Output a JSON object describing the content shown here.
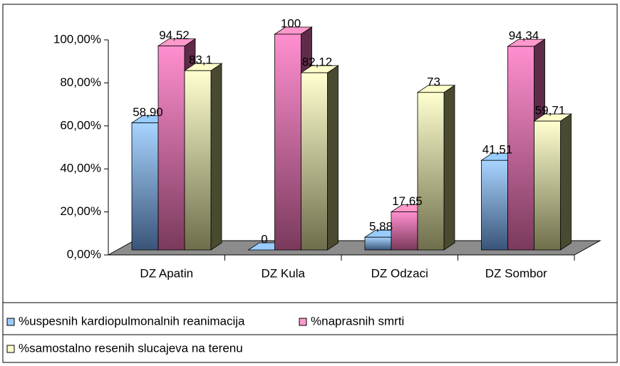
{
  "chart_data": {
    "type": "bar3d",
    "categories": [
      "DZ Apatin",
      "DZ Kula",
      "DZ Odzaci",
      "DZ Sombor"
    ],
    "series": [
      {
        "name": "%uspesnih kardiopulmonalnih reanimacija",
        "color": "#99ccff",
        "values": [
          58.9,
          0,
          5.88,
          41.51
        ],
        "value_labels": [
          "58,90",
          "0",
          "5,88",
          "41,51"
        ]
      },
      {
        "name": "%naprasnih smrti",
        "color": "#ff99cc",
        "values": [
          94.52,
          100,
          17.65,
          94.34
        ],
        "value_labels": [
          "94,52",
          "100",
          "17,65",
          "94,34"
        ]
      },
      {
        "name": "%samostalno resenih slucajeva na terenu",
        "color": "#ffffcc",
        "values": [
          83.1,
          82.12,
          73,
          59.71
        ],
        "value_labels": [
          "83,1",
          "82,12",
          "73",
          "59,71"
        ]
      }
    ],
    "ylim": [
      0,
      100
    ],
    "yticks": [
      {
        "value": 0,
        "label": "0,00%"
      },
      {
        "value": 20,
        "label": "20,00%"
      },
      {
        "value": 40,
        "label": "40,00%"
      },
      {
        "value": 60,
        "label": "60,00%"
      },
      {
        "value": 80,
        "label": "80,00%"
      },
      {
        "value": 100,
        "label": "100,00%"
      }
    ],
    "legend": "bottom"
  }
}
